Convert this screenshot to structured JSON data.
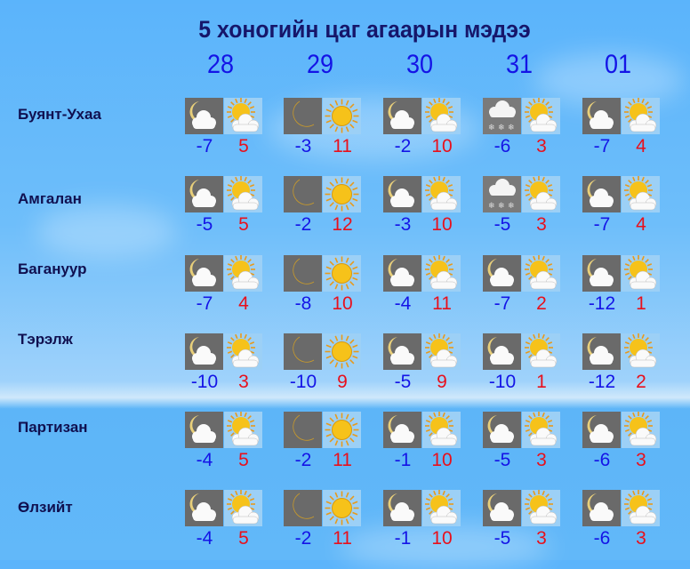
{
  "title": "5 хоногийн цаг агаарын мэдээ",
  "dates": [
    "28",
    "29",
    "30",
    "31",
    "01"
  ],
  "colors": {
    "low": "#1414e6",
    "high": "#e8101c",
    "title": "#16166a"
  },
  "cities": [
    {
      "name": "Буянт-Ухаа",
      "days": [
        {
          "night_icon": "moon-cloud-icon",
          "day_icon": "sun-cloud-icon",
          "low": "-7",
          "high": "5"
        },
        {
          "night_icon": "moon-icon",
          "day_icon": "sun-icon",
          "low": "-3",
          "high": "11"
        },
        {
          "night_icon": "moon-cloud-icon",
          "day_icon": "sun-cloud-icon",
          "low": "-2",
          "high": "10"
        },
        {
          "night_icon": "snow-cloud-icon",
          "day_icon": "sun-cloud-icon",
          "low": "-6",
          "high": "3"
        },
        {
          "night_icon": "moon-cloud-icon",
          "day_icon": "sun-cloud-icon",
          "low": "-7",
          "high": "4"
        }
      ]
    },
    {
      "name": "Амгалан",
      "days": [
        {
          "night_icon": "moon-cloud-icon",
          "day_icon": "sun-cloud-icon",
          "low": "-5",
          "high": "5"
        },
        {
          "night_icon": "moon-icon",
          "day_icon": "sun-icon",
          "low": "-2",
          "high": "12"
        },
        {
          "night_icon": "moon-cloud-icon",
          "day_icon": "sun-cloud-icon",
          "low": "-3",
          "high": "10"
        },
        {
          "night_icon": "snow-cloud-icon",
          "day_icon": "sun-cloud-icon",
          "low": "-5",
          "high": "3"
        },
        {
          "night_icon": "moon-cloud-icon",
          "day_icon": "sun-cloud-icon",
          "low": "-7",
          "high": "4"
        }
      ]
    },
    {
      "name": "Багануур",
      "days": [
        {
          "night_icon": "moon-cloud-icon",
          "day_icon": "sun-cloud-icon",
          "low": "-7",
          "high": "4"
        },
        {
          "night_icon": "moon-icon",
          "day_icon": "sun-icon",
          "low": "-8",
          "high": "10"
        },
        {
          "night_icon": "moon-cloud-icon",
          "day_icon": "sun-cloud-icon",
          "low": "-4",
          "high": "11"
        },
        {
          "night_icon": "moon-cloud-icon",
          "day_icon": "sun-cloud-icon",
          "low": "-7",
          "high": "2"
        },
        {
          "night_icon": "moon-cloud-icon",
          "day_icon": "sun-cloud-icon",
          "low": "-12",
          "high": "1"
        }
      ]
    },
    {
      "name": "Тэрэлж",
      "days": [
        {
          "night_icon": "moon-cloud-icon",
          "day_icon": "sun-cloud-icon",
          "low": "-10",
          "high": "3"
        },
        {
          "night_icon": "moon-icon",
          "day_icon": "sun-icon",
          "low": "-10",
          "high": "9"
        },
        {
          "night_icon": "moon-cloud-icon",
          "day_icon": "sun-cloud-icon",
          "low": "-5",
          "high": "9"
        },
        {
          "night_icon": "moon-cloud-icon",
          "day_icon": "sun-cloud-icon",
          "low": "-10",
          "high": "1"
        },
        {
          "night_icon": "moon-cloud-icon",
          "day_icon": "sun-cloud-icon",
          "low": "-12",
          "high": "2"
        }
      ]
    },
    {
      "name": "Партизан",
      "days": [
        {
          "night_icon": "moon-cloud-icon",
          "day_icon": "sun-cloud-icon",
          "low": "-4",
          "high": "5"
        },
        {
          "night_icon": "moon-icon",
          "day_icon": "sun-icon",
          "low": "-2",
          "high": "11"
        },
        {
          "night_icon": "moon-cloud-icon",
          "day_icon": "sun-cloud-icon",
          "low": "-1",
          "high": "10"
        },
        {
          "night_icon": "moon-cloud-icon",
          "day_icon": "sun-cloud-icon",
          "low": "-5",
          "high": "3"
        },
        {
          "night_icon": "moon-cloud-icon",
          "day_icon": "sun-cloud-icon",
          "low": "-6",
          "high": "3"
        }
      ]
    },
    {
      "name": "Өлзийт",
      "days": [
        {
          "night_icon": "moon-cloud-icon",
          "day_icon": "sun-cloud-icon",
          "low": "-4",
          "high": "5"
        },
        {
          "night_icon": "moon-icon",
          "day_icon": "sun-icon",
          "low": "-2",
          "high": "11"
        },
        {
          "night_icon": "moon-cloud-icon",
          "day_icon": "sun-cloud-icon",
          "low": "-1",
          "high": "10"
        },
        {
          "night_icon": "moon-cloud-icon",
          "day_icon": "sun-cloud-icon",
          "low": "-5",
          "high": "3"
        },
        {
          "night_icon": "moon-cloud-icon",
          "day_icon": "sun-cloud-icon",
          "low": "-6",
          "high": "3"
        }
      ]
    }
  ]
}
